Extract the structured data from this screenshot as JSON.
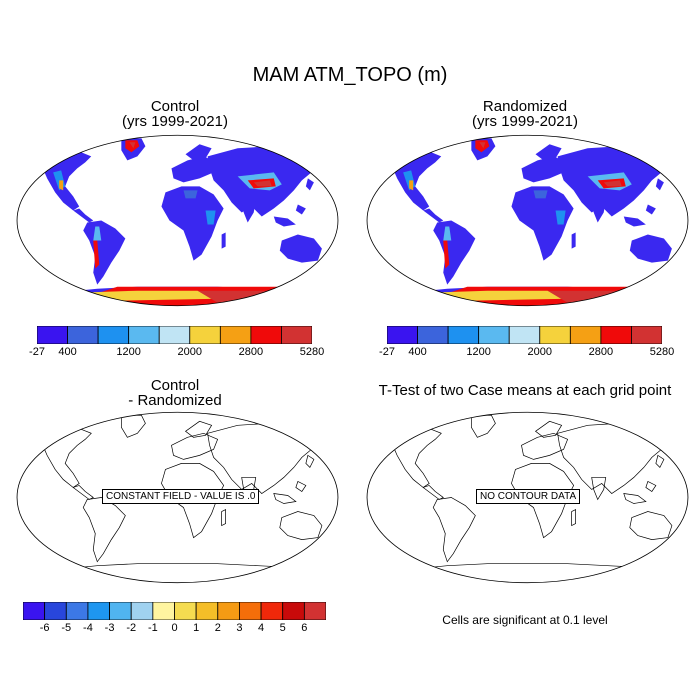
{
  "main_title": "MAM ATM_TOPO (m)",
  "panels": {
    "control": {
      "title": "Control",
      "subtitle": "(yrs 1999-2021)"
    },
    "randomized": {
      "title": "Randomized",
      "subtitle": "(yrs 1999-2021)"
    },
    "difference": {
      "title": "Control",
      "subtitle": "- Randomized",
      "message": "CONSTANT FIELD - VALUE IS .0"
    },
    "ttest": {
      "title": "T-Test of two Case means at each grid point",
      "message": "NO CONTOUR DATA"
    }
  },
  "topo_colorbar": {
    "colors": [
      "#3a14f0",
      "#3c64dc",
      "#1e91f0",
      "#5ab9f0",
      "#c0e4f4",
      "#f5d23c",
      "#f5a014",
      "#f00a0a",
      "#d23232"
    ],
    "labels": [
      "-27",
      "400",
      "1200",
      "2000",
      "2800",
      "5280"
    ]
  },
  "diff_colorbar": {
    "colors": [
      "#3a14f0",
      "#2846dc",
      "#3c78e6",
      "#1e96f0",
      "#50b4f0",
      "#a0d2f0",
      "#fff5a0",
      "#f5dc50",
      "#f5be28",
      "#f59b14",
      "#f56e0a",
      "#f0280a",
      "#c80a0a",
      "#d23232"
    ],
    "labels": [
      "-6",
      "-5",
      "-4",
      "-3",
      "-2",
      "-1",
      "0",
      "1",
      "2",
      "3",
      "4",
      "5",
      "6"
    ]
  },
  "significance_note": "Cells are significant at 0.1 level"
}
